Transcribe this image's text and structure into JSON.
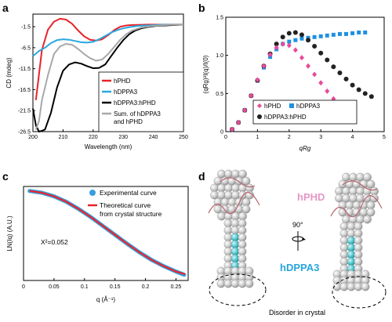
{
  "figure": {
    "panels": {
      "a": "a",
      "b": "b",
      "c": "c",
      "d": "d"
    }
  },
  "chart_data": [
    {
      "panel": "a",
      "type": "line",
      "xlabel": "Wavelength (nm)",
      "ylabel": "CD (mdeg)",
      "xlim": [
        200,
        250
      ],
      "ylim": [
        -26.5,
        1.5
      ],
      "xticks": [
        200,
        210,
        220,
        230,
        240,
        250
      ],
      "yticks": [
        -1.5,
        -6.5,
        -11.5,
        -16.5,
        -21.5,
        -26.5
      ],
      "legend_position": "bottom-right",
      "series": [
        {
          "name": "hPHD",
          "color": "#e8232a",
          "x": [
            201,
            203,
            205,
            207,
            209,
            211,
            213,
            215,
            217,
            219,
            221,
            223,
            225,
            227,
            229,
            231,
            233,
            235,
            238,
            241,
            244,
            247,
            250
          ],
          "y": [
            -19,
            -7,
            -2.2,
            -0.3,
            0.4,
            0.2,
            -0.8,
            -2.4,
            -3.8,
            -4.6,
            -4.8,
            -4.5,
            -3.5,
            -2.3,
            -1.5,
            -1.2,
            -1.1,
            -1.05,
            -1.0,
            -1.0,
            -1.0,
            -1.0,
            -1.0
          ]
        },
        {
          "name": "hDPPA3",
          "color": "#29a8e0",
          "x": [
            200,
            202,
            204,
            206,
            208,
            210,
            212,
            214,
            216,
            218,
            220,
            222,
            224,
            226,
            228,
            230,
            232,
            235,
            238,
            241,
            244,
            247,
            250
          ],
          "y": [
            -8.5,
            -7.3,
            -6.5,
            -5.4,
            -4.7,
            -4.5,
            -4.6,
            -4.9,
            -5.2,
            -5.3,
            -5.1,
            -4.5,
            -3.7,
            -2.9,
            -2.3,
            -1.9,
            -1.6,
            -1.3,
            -1.2,
            -1.1,
            -1.0,
            -1.0,
            -1.0
          ]
        },
        {
          "name": "hDPPA3:hPHD",
          "color": "#000000",
          "x": [
            200,
            201,
            202,
            203,
            204,
            206,
            208,
            210,
            212,
            214,
            216,
            218,
            220,
            222,
            224,
            226,
            228,
            230,
            232,
            234,
            236,
            238,
            241,
            244,
            247,
            250
          ],
          "y": [
            -21,
            -25,
            -26.5,
            -26.3,
            -26,
            -22,
            -16,
            -12,
            -10.5,
            -10,
            -10.3,
            -10.9,
            -11.4,
            -11.3,
            -10.5,
            -8.5,
            -6.5,
            -4.7,
            -3.3,
            -2.4,
            -1.9,
            -1.6,
            -1.3,
            -1.2,
            -1.1,
            -1.0
          ]
        },
        {
          "name": "Sum. of hDPPA3 and hPHD",
          "color": "#a8a8a8",
          "x": [
            201,
            202,
            203,
            205,
            207,
            209,
            211,
            213,
            215,
            217,
            219,
            221,
            223,
            225,
            227,
            229,
            231,
            233,
            236,
            240,
            244,
            248,
            250
          ],
          "y": [
            -26,
            -24,
            -19,
            -13,
            -8,
            -6.2,
            -5.6,
            -5.8,
            -6.8,
            -8,
            -9,
            -9.6,
            -9.3,
            -8,
            -6.3,
            -4.6,
            -3.3,
            -2.4,
            -1.7,
            -1.3,
            -1.1,
            -1.0,
            -1.0
          ]
        }
      ]
    },
    {
      "panel": "b",
      "type": "scatter",
      "xlabel": "qRg",
      "ylabel": "(qRg)²I(q)/I(0)",
      "xlim": [
        0,
        5
      ],
      "ylim": [
        0,
        1.5
      ],
      "xticks": [
        0,
        1,
        2,
        3,
        4,
        5
      ],
      "yticks": [
        0,
        0.5,
        1.0,
        1.5
      ],
      "legend_position": "bottom-right",
      "series": [
        {
          "name": "hPHD",
          "color": "#e84b9a",
          "marker": "diamond",
          "x": [
            0.2,
            0.4,
            0.6,
            0.8,
            1.0,
            1.2,
            1.4,
            1.6,
            1.8,
            2.0,
            2.2,
            2.4,
            2.6,
            2.8,
            3.0,
            3.2,
            3.4
          ],
          "y": [
            0.03,
            0.12,
            0.28,
            0.47,
            0.68,
            0.86,
            1.01,
            1.1,
            1.15,
            1.13,
            1.07,
            0.97,
            0.86,
            0.75,
            0.64,
            0.53,
            0.43
          ]
        },
        {
          "name": "hDPPA3",
          "color": "#1e90e0",
          "marker": "square",
          "x": [
            0.2,
            0.4,
            0.6,
            0.8,
            1.0,
            1.2,
            1.4,
            1.6,
            1.8,
            2.0,
            2.2,
            2.4,
            2.6,
            2.8,
            3.0,
            3.2,
            3.4,
            3.6,
            3.8,
            4.0,
            4.2,
            4.4
          ],
          "y": [
            0.03,
            0.12,
            0.28,
            0.47,
            0.67,
            0.84,
            0.98,
            1.08,
            1.15,
            1.18,
            1.2,
            1.22,
            1.23,
            1.24,
            1.25,
            1.26,
            1.27,
            1.28,
            1.28,
            1.29,
            1.3,
            1.3
          ]
        },
        {
          "name": "hDPPA3:hPHD",
          "color": "#222222",
          "marker": "circle",
          "x": [
            0.2,
            0.4,
            0.6,
            0.8,
            1.0,
            1.2,
            1.4,
            1.6,
            1.8,
            2.0,
            2.2,
            2.4,
            2.6,
            2.8,
            3.0,
            3.2,
            3.4,
            3.6,
            3.8,
            4.0,
            4.2,
            4.4,
            4.6
          ],
          "y": [
            0.03,
            0.12,
            0.28,
            0.47,
            0.67,
            0.86,
            1.02,
            1.15,
            1.24,
            1.29,
            1.3,
            1.27,
            1.2,
            1.12,
            1.03,
            0.94,
            0.85,
            0.77,
            0.69,
            0.61,
            0.55,
            0.5,
            0.46
          ]
        }
      ]
    },
    {
      "panel": "c",
      "type": "line",
      "xlabel": "q (Å⁻¹)",
      "ylabel": "LN(Iq) (A.U.)",
      "xlim": [
        0,
        0.27
      ],
      "xticks": [
        0,
        0.05,
        0.1,
        0.15,
        0.2,
        0.25
      ],
      "annotation": "X²=0.052",
      "legend_position": "top-right",
      "series": [
        {
          "name": "Experimental curve",
          "color": "#3a9fdc",
          "marker": "circle",
          "x": [
            0.01,
            0.03,
            0.05,
            0.07,
            0.09,
            0.11,
            0.13,
            0.15,
            0.17,
            0.19,
            0.21,
            0.23,
            0.25,
            0.265
          ],
          "y": [
            0.0,
            -0.04,
            -0.12,
            -0.24,
            -0.4,
            -0.58,
            -0.78,
            -0.98,
            -1.18,
            -1.37,
            -1.54,
            -1.68,
            -1.8,
            -1.88
          ]
        },
        {
          "name": "Theoretical curve from crystal structure",
          "color": "#e8232a",
          "x": [
            0.01,
            0.03,
            0.05,
            0.07,
            0.09,
            0.11,
            0.13,
            0.15,
            0.17,
            0.19,
            0.21,
            0.23,
            0.25,
            0.265
          ],
          "y": [
            0.0,
            -0.04,
            -0.12,
            -0.24,
            -0.4,
            -0.58,
            -0.78,
            -0.98,
            -1.18,
            -1.37,
            -1.54,
            -1.68,
            -1.8,
            -1.86
          ]
        }
      ]
    }
  ],
  "panel_d": {
    "label_hphd": "hPHD",
    "label_hdppa3": "hDPPA3",
    "rotation": "90°",
    "disorder_caption": "Disorder in crystal"
  }
}
